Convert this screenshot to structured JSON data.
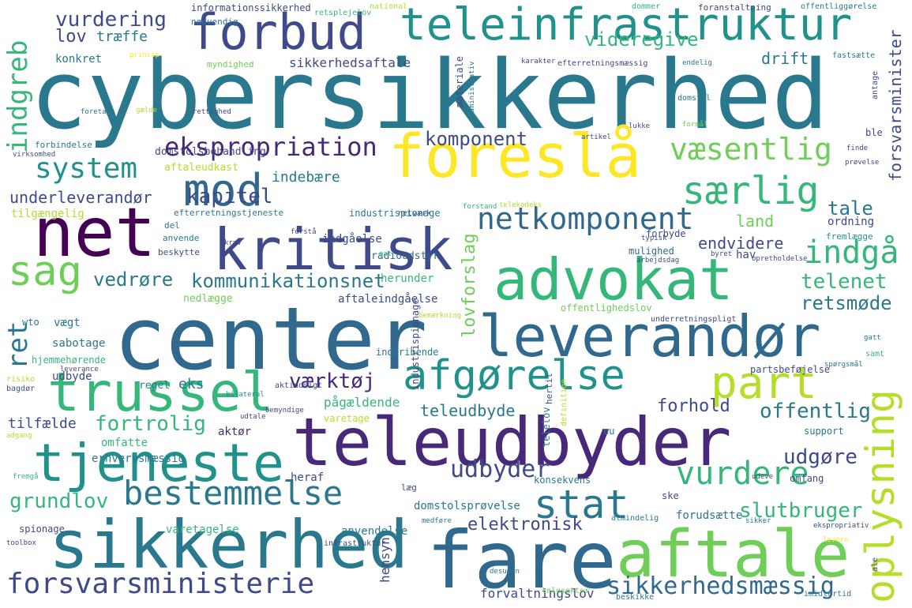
{
  "palette": {
    "c_big": "#2a788e",
    "c_teal": "#21918c",
    "c_dark": "#482878",
    "c_purple": "#3e4a89",
    "c_navy": "#31688e",
    "c_green": "#35b779",
    "c_lime": "#6ece58",
    "c_yellow": "#fde725",
    "c_ltgreen": "#b5de2b",
    "c_deep": "#440154"
  },
  "words": [
    "cybersikkerhed",
    "teleinfrastruktur",
    "forbud",
    "foreslå",
    "net",
    "kritisk",
    "mod",
    "advokat",
    "center",
    "leverandør",
    "teleudbyder",
    "fare",
    "aftale",
    "sikkerhed",
    "trussel",
    "tjeneste",
    "bestemmelse",
    "forsvarsministerie",
    "afgørelse",
    "part",
    "oplysning",
    "stat",
    "vurdere",
    "netkomponent",
    "særlig",
    "væsentlig",
    "ekspropriation",
    "system",
    "sag",
    "indgreb",
    "kommunikationsnet",
    "kapitel",
    "indgå",
    "sikkerhedsmæssig",
    "grundlov",
    "fortrolig",
    "udbyder",
    "slutbruger",
    "offentlig",
    "værktøj",
    "udgøre",
    "telenet",
    "retsmøde",
    "vurdering",
    "lov",
    "træffe",
    "konkret",
    "videregive",
    "drift",
    "komponent",
    "indebære",
    "underleverandør",
    "tale",
    "land",
    "endvidere",
    "ret",
    "vedrøre",
    "lovforslag",
    "elektronisk",
    "forsvarsminister",
    "forhold",
    "teleudbyde",
    "sikkerhedsaftale",
    "informationssikkerhed",
    "nødvendig",
    "retsplejelov",
    "national",
    "dommer",
    "foranstaltning",
    "offentliggørelse",
    "myndighed",
    "princip",
    "karakter",
    "efterretningsmæssig",
    "endelig",
    "fastsætte",
    "domstol",
    "materiale",
    "administrativ",
    "tilgængelig",
    "netværk",
    "herunder",
    "industrispionage",
    "indgåelse",
    "radioudstyr",
    "mulighed",
    "ordning",
    "fremlægge",
    "hav",
    "nedlægge",
    "aftaleindgåelse",
    "offentlighedslov",
    "underretningspligt",
    "wto",
    "vægt",
    "sabotage",
    "hjemmehørende",
    "udbyde",
    "regel",
    "eks",
    "bilateral",
    "aktindsigt",
    "pågældende",
    "industrispionage",
    "forbyde",
    "domstolsbehandling",
    "aftaleudkast",
    "tilfælde",
    "omfatte",
    "aktør",
    "erhvervsmæssig",
    "varetage",
    "heraf",
    "konsekvens",
    "læg",
    "domstolsprøvelse",
    "ske",
    "forudsætte",
    "spionage",
    "anvendelse",
    "varetagelse",
    "medføre",
    "almindelig",
    "sikker",
    "ekspropriativ",
    "forvaltningslov",
    "desuden",
    "telesektor",
    "beskikke",
    "imidlertid",
    "hensyn",
    "infrastruktur",
    "toolbox",
    "support",
    "samt",
    "gatt",
    "telelov",
    "hertil",
    "eu",
    "definition",
    "ble",
    "finde",
    "prøvelse",
    "forbindelse",
    "virksomhed",
    "foretage",
    "gælde",
    "rettighed",
    "lukke",
    "artikel",
    "formål",
    "anvende",
    "beskytte",
    "del",
    "forstå",
    "kræv",
    "gat",
    "efterretningstjeneste",
    "typisk",
    "arbejdsdag",
    "byret",
    "opretholdelse",
    "partsbeføjelse",
    "bemærkning",
    "leverance",
    "bagdør",
    "risiko",
    "adgang",
    "fremgå",
    "udtale",
    "bemyndige",
    "udeve",
    "levere",
    "ale",
    "omfang",
    "spørgsmål",
    "antage",
    "telekodeks",
    "forstand",
    "indgribende"
  ]
}
